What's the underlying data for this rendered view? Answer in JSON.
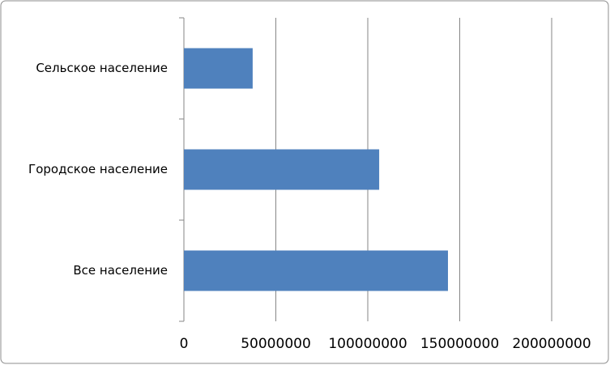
{
  "chart_data": {
    "type": "bar",
    "orientation": "horizontal",
    "categories": [
      "Все население",
      "Городское население",
      "Сельское население"
    ],
    "values": [
      143600000,
      106200000,
      37400000
    ],
    "color": "#4f81bd",
    "xlim": [
      0,
      200000000
    ],
    "xticks": [
      0,
      50000000,
      100000000,
      150000000,
      200000000
    ],
    "grid": true
  }
}
